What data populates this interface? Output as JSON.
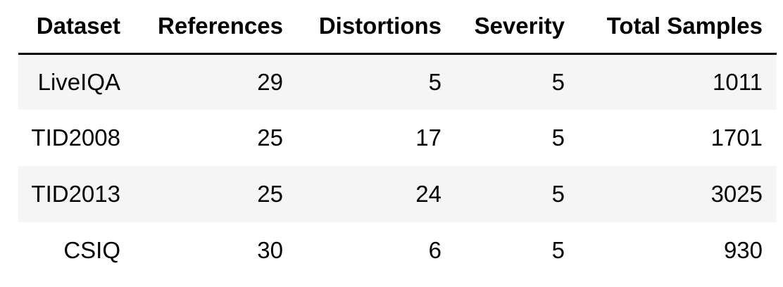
{
  "table": {
    "headers": [
      "Dataset",
      "References",
      "Distortions",
      "Severity",
      "Total Samples"
    ],
    "rows": [
      [
        "LiveIQA",
        "29",
        "5",
        "5",
        "1011"
      ],
      [
        "TID2008",
        "25",
        "17",
        "5",
        "1701"
      ],
      [
        "TID2013",
        "25",
        "24",
        "5",
        "3025"
      ],
      [
        "CSIQ",
        "30",
        "6",
        "5",
        "930"
      ]
    ]
  }
}
